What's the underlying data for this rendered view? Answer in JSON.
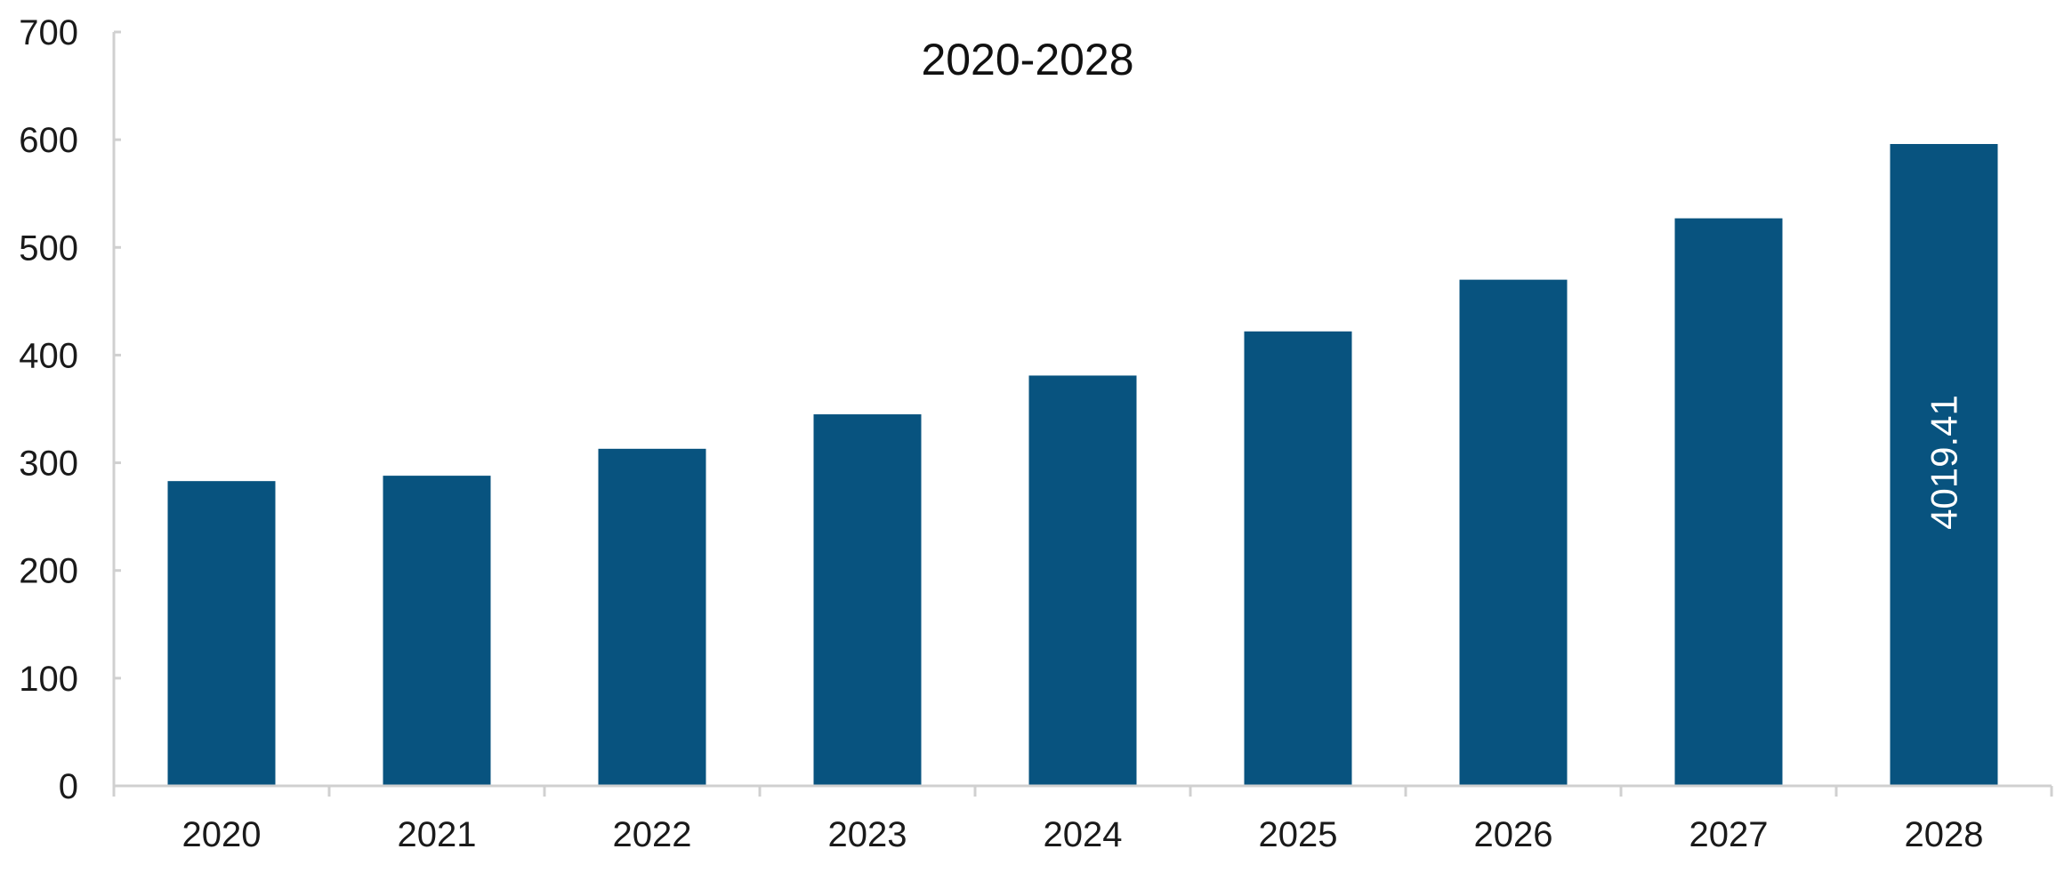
{
  "chart_data": {
    "type": "bar",
    "title": "2020-2028",
    "categories": [
      "2020",
      "2021",
      "2022",
      "2023",
      "2024",
      "2025",
      "2026",
      "2027",
      "2028"
    ],
    "values": [
      283,
      288,
      313,
      345,
      381,
      422,
      470,
      527,
      596
    ],
    "ylim": [
      0,
      700
    ],
    "yticks": [
      0,
      100,
      200,
      300,
      400,
      500,
      600,
      700
    ],
    "xlabel": "",
    "ylabel": "",
    "grid": false,
    "legend": "none",
    "bar_color": "#08537f",
    "data_labels": [
      {
        "category": "2028",
        "text": "4019.41"
      }
    ]
  }
}
